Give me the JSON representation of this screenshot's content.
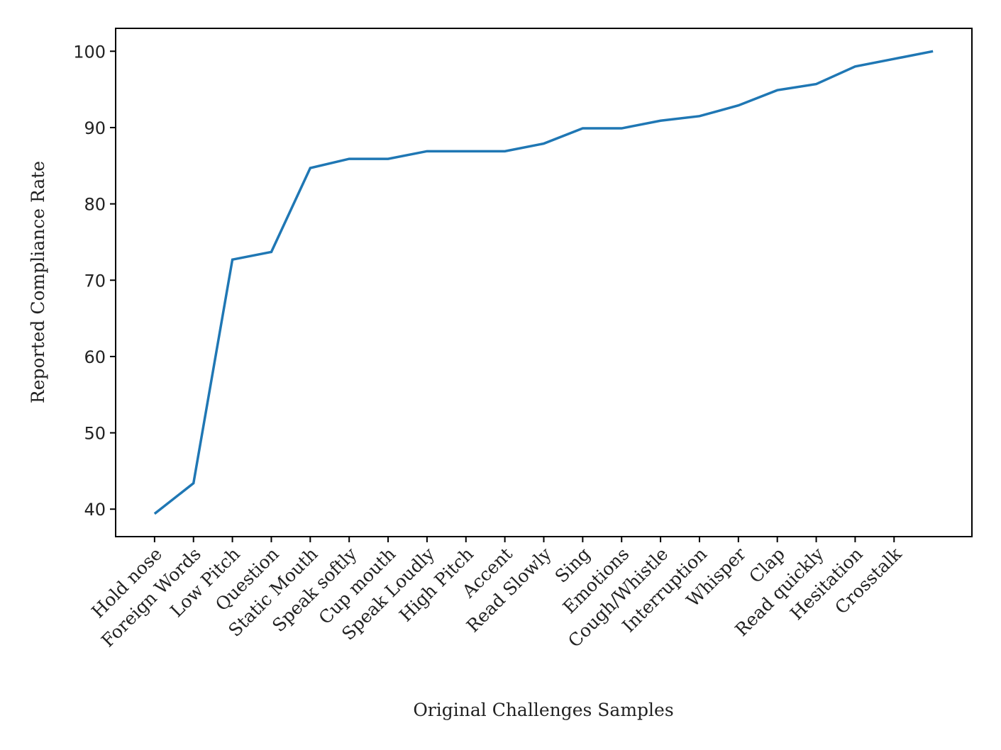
{
  "chart_data": {
    "type": "line",
    "xlabel": "Original Challenges Samples",
    "ylabel": "Reported Compliance Rate",
    "categories": [
      "Hold nose",
      "Foreign Words",
      "Low Pitch",
      "Question",
      "Static Mouth",
      "Speak softly",
      "Cup mouth",
      "Speak Loudly",
      "High Pitch",
      "Accent",
      "Read Slowly",
      "Sing",
      "Emotions",
      "Cough/Whistle",
      "Interruption",
      "Whisper",
      "Clap",
      "Read quickly",
      "Hesitation",
      "Crosstalk",
      null
    ],
    "series": [
      {
        "name": "Reported Compliance Rate",
        "color": "#1f77b4",
        "values": [
          39.4,
          43.4,
          72.7,
          73.7,
          84.7,
          85.9,
          85.9,
          86.9,
          86.9,
          86.9,
          87.9,
          89.9,
          89.9,
          90.9,
          91.5,
          92.9,
          94.9,
          95.7,
          98,
          99,
          100
        ]
      }
    ],
    "xlim": [
      -1,
      21
    ],
    "ylim": [
      36.4,
      103
    ],
    "yticks": [
      40,
      50,
      60,
      70,
      80,
      90,
      100
    ],
    "grid": false
  }
}
